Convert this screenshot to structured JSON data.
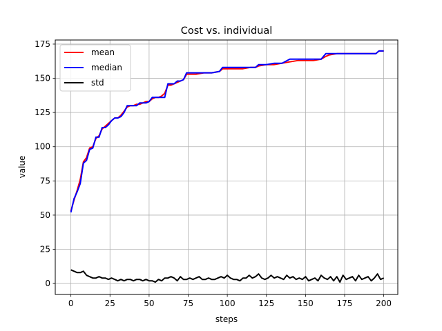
{
  "chart_data": {
    "type": "line",
    "title": "Cost vs. individual",
    "xlabel": "steps",
    "ylabel": "value",
    "xlim": [
      -10,
      209
    ],
    "ylim": [
      -8,
      178
    ],
    "xticks": [
      0,
      25,
      50,
      75,
      100,
      125,
      150,
      175,
      200
    ],
    "yticks": [
      0,
      25,
      50,
      75,
      100,
      125,
      150,
      175
    ],
    "grid": true,
    "legend": "top-left",
    "series": [
      {
        "name": "mean",
        "color": "#ff0000",
        "x": [
          0,
          2,
          4,
          6,
          8,
          10,
          12,
          14,
          16,
          18,
          20,
          22,
          24,
          26,
          28,
          30,
          32,
          34,
          36,
          38,
          40,
          42,
          44,
          46,
          48,
          50,
          52,
          54,
          56,
          58,
          60,
          62,
          64,
          66,
          68,
          70,
          72,
          74,
          76,
          80,
          85,
          90,
          95,
          97,
          100,
          105,
          110,
          115,
          118,
          120,
          125,
          130,
          135,
          140,
          145,
          150,
          155,
          160,
          163,
          165,
          170,
          175,
          180,
          185,
          190,
          195,
          197,
          200
        ],
        "y": [
          53,
          61,
          68,
          76,
          89,
          92,
          99,
          100,
          106,
          108,
          113,
          115,
          117,
          119,
          121,
          121,
          123,
          126,
          129,
          130,
          130,
          131,
          131,
          132,
          133,
          133,
          135,
          136,
          136,
          137,
          139,
          145,
          145,
          146,
          147,
          148,
          149,
          153,
          153,
          153,
          154,
          154,
          155,
          157,
          157,
          157,
          157,
          158,
          158,
          159,
          160,
          160,
          161,
          162,
          163,
          163,
          163,
          164,
          166,
          167,
          168,
          168,
          168,
          168,
          168,
          168,
          170,
          170
        ]
      },
      {
        "name": "median",
        "color": "#0000ff",
        "x": [
          0,
          2,
          4,
          6,
          8,
          10,
          12,
          14,
          16,
          18,
          20,
          22,
          24,
          26,
          28,
          30,
          32,
          34,
          36,
          38,
          40,
          42,
          44,
          46,
          48,
          50,
          52,
          54,
          56,
          58,
          60,
          62,
          64,
          66,
          68,
          70,
          72,
          74,
          76,
          80,
          85,
          90,
          95,
          97,
          100,
          105,
          110,
          115,
          118,
          120,
          125,
          130,
          135,
          140,
          145,
          150,
          155,
          160,
          163,
          165,
          170,
          175,
          180,
          185,
          190,
          195,
          197,
          200
        ],
        "y": [
          52,
          62,
          67,
          73,
          88,
          90,
          98,
          99,
          107,
          107,
          114,
          114,
          116,
          119,
          121,
          121,
          122,
          125,
          130,
          130,
          130,
          130,
          132,
          132,
          132,
          133,
          136,
          136,
          136,
          136,
          136,
          146,
          146,
          146,
          148,
          148,
          149,
          154,
          154,
          154,
          154,
          154,
          155,
          158,
          158,
          158,
          158,
          158,
          158,
          160,
          160,
          161,
          161,
          164,
          164,
          164,
          164,
          164,
          168,
          168,
          168,
          168,
          168,
          168,
          168,
          168,
          170,
          170
        ]
      },
      {
        "name": "std",
        "color": "#000000",
        "x": [
          0,
          2,
          4,
          6,
          8,
          10,
          12,
          14,
          16,
          18,
          20,
          22,
          24,
          26,
          28,
          30,
          32,
          34,
          36,
          38,
          40,
          42,
          44,
          46,
          48,
          50,
          52,
          54,
          56,
          58,
          60,
          62,
          64,
          66,
          68,
          70,
          72,
          74,
          76,
          78,
          80,
          82,
          84,
          86,
          88,
          90,
          92,
          94,
          96,
          98,
          100,
          102,
          104,
          106,
          108,
          110,
          112,
          114,
          116,
          118,
          120,
          122,
          124,
          126,
          128,
          130,
          132,
          134,
          136,
          138,
          140,
          142,
          144,
          146,
          148,
          150,
          152,
          154,
          156,
          158,
          160,
          162,
          164,
          166,
          168,
          170,
          172,
          174,
          176,
          178,
          180,
          182,
          184,
          186,
          188,
          190,
          192,
          194,
          196,
          198,
          200
        ],
        "y": [
          10,
          9,
          8,
          8,
          9,
          6,
          5,
          4,
          4,
          5,
          4,
          4,
          3,
          4,
          3,
          2,
          3,
          2,
          3,
          3,
          2,
          3,
          3,
          2,
          3,
          2,
          2,
          1,
          3,
          2,
          4,
          4,
          5,
          4,
          2,
          5,
          3,
          3,
          4,
          3,
          4,
          5,
          3,
          3,
          4,
          3,
          3,
          4,
          5,
          4,
          6,
          4,
          3,
          3,
          2,
          4,
          4,
          6,
          4,
          5,
          7,
          4,
          3,
          4,
          6,
          4,
          5,
          4,
          3,
          6,
          4,
          5,
          3,
          4,
          3,
          5,
          2,
          3,
          4,
          2,
          6,
          4,
          3,
          5,
          2,
          5,
          1,
          6,
          3,
          4,
          5,
          2,
          6,
          3,
          4,
          5,
          2,
          4,
          7,
          3,
          4
        ]
      }
    ]
  }
}
